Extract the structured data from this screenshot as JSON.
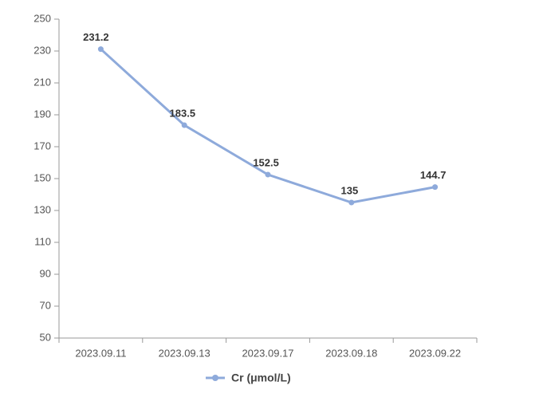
{
  "chart_data": {
    "type": "line",
    "categories": [
      "2023.09.11",
      "2023.09.13",
      "2023.09.17",
      "2023.09.18",
      "2023.09.22"
    ],
    "series": [
      {
        "name": "Cr (μmol/L)",
        "color": "#8eaadb",
        "values": [
          231.2,
          183.5,
          152.5,
          135,
          144.7
        ]
      }
    ],
    "ylim": [
      50,
      250
    ],
    "yticks": [
      50,
      70,
      90,
      110,
      130,
      150,
      170,
      190,
      210,
      230,
      250
    ],
    "grid": false,
    "legend": "bottom"
  }
}
